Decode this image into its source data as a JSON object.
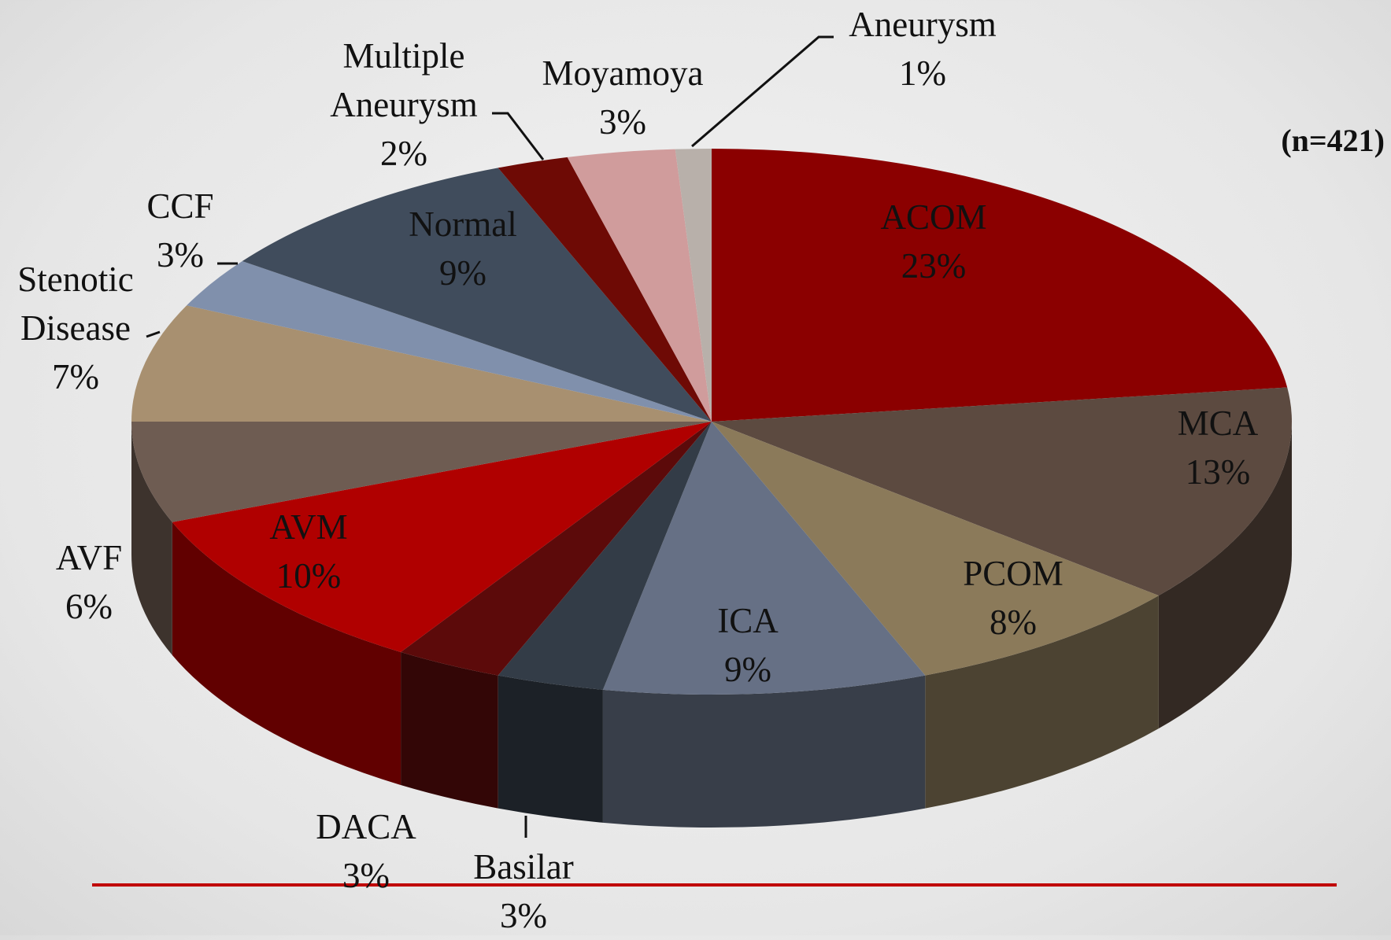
{
  "chart_data": {
    "type": "pie",
    "annotation": "(n=421)",
    "categories": [
      "ACOM",
      "MCA",
      "PCOM",
      "ICA",
      "Basilar",
      "DACA",
      "AVM",
      "AVF",
      "Stenotic Disease",
      "CCF",
      "Normal",
      "Multiple Aneurysm",
      "Moyamoya",
      "Aneurysm"
    ],
    "values": [
      23,
      13,
      8,
      9,
      3,
      3,
      10,
      6,
      7,
      3,
      9,
      2,
      3,
      1
    ],
    "value_labels": [
      "23%",
      "13%",
      "8%",
      "9%",
      "3%",
      "3%",
      "10%",
      "6%",
      "7%",
      "3%",
      "9%",
      "2%",
      "3%",
      "1%"
    ],
    "colors": [
      "#8b0000",
      "#5c4a40",
      "#8b7a5a",
      "#667085",
      "#333c47",
      "#5c0a0a",
      "#b00000",
      "#6e5c52",
      "#a89070",
      "#8090ac",
      "#404c5c",
      "#6e0a05",
      "#d09c9c",
      "#b8b0aa"
    ]
  }
}
